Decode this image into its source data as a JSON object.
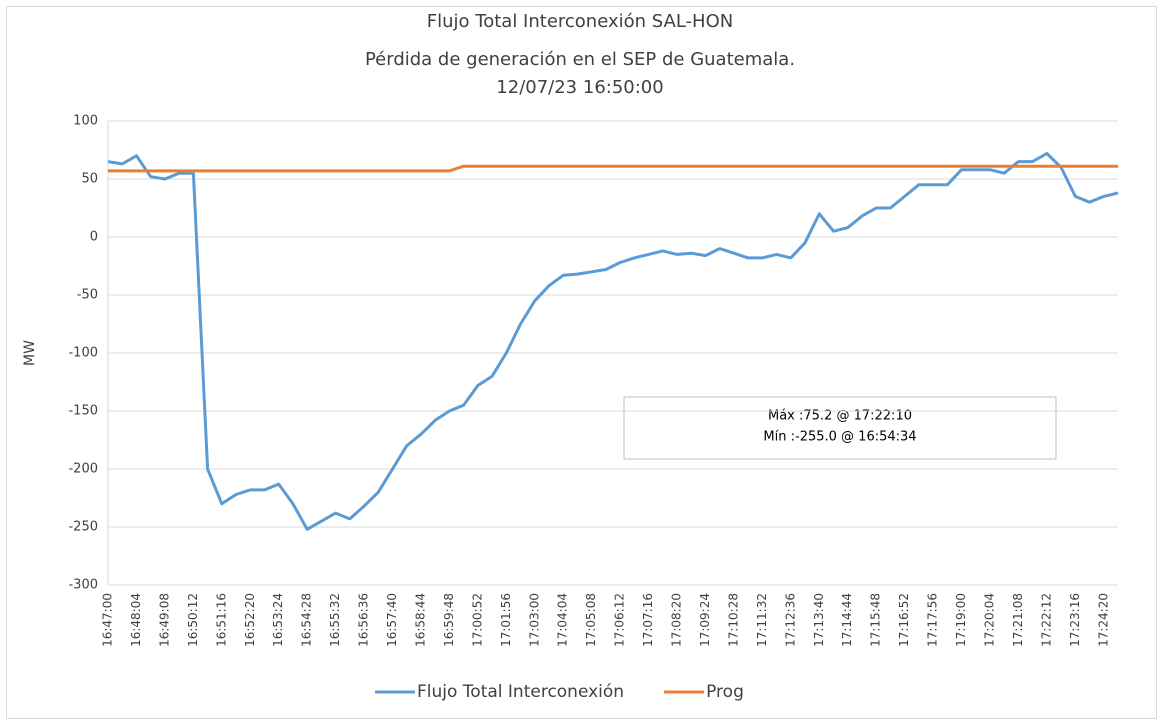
{
  "chart_data": {
    "type": "line",
    "title": [
      "Flujo Total Interconexión SAL-HON",
      "Pérdida de generación en el SEP de Guatemala.",
      "12/07/23 16:50:00"
    ],
    "ylabel": "MW",
    "categories": [
      "16:47:00",
      null,
      "16:48:04",
      null,
      "16:49:08",
      null,
      "16:50:12",
      null,
      "16:51:16",
      null,
      "16:52:20",
      null,
      "16:53:24",
      null,
      "16:54:28",
      null,
      "16:55:32",
      null,
      "16:56:36",
      null,
      "16:57:40",
      null,
      "16:58:44",
      null,
      "16:59:48",
      null,
      "17:00:52",
      null,
      "17:01:56",
      null,
      "17:03:00",
      null,
      "17:04:04",
      null,
      "17:05:08",
      null,
      "17:06:12",
      null,
      "17:07:16",
      null,
      "17:08:20",
      null,
      "17:09:24",
      null,
      "17:10:28",
      null,
      "17:11:32",
      null,
      "17:12:36",
      null,
      "17:13:40",
      null,
      "17:14:44",
      null,
      "17:15:48",
      null,
      "17:16:52",
      null,
      "17:17:56",
      null,
      "17:19:00",
      null,
      "17:20:04",
      null,
      "17:21:08",
      null,
      "17:22:12",
      null,
      "17:23:16",
      null,
      "17:24:20",
      null
    ],
    "series": [
      {
        "name": "Flujo Total Interconexión",
        "color": "#5b9bd5",
        "values": [
          65,
          63,
          70,
          52,
          50,
          55,
          55,
          -200,
          -230,
          -222,
          -218,
          -218,
          -213,
          -230,
          -252,
          -245,
          -238,
          -243,
          -232,
          -220,
          -200,
          -180,
          -170,
          -158,
          -150,
          -145,
          -128,
          -120,
          -100,
          -75,
          -55,
          -42,
          -33,
          -32,
          -30,
          -28,
          -22,
          -18,
          -15,
          -12,
          -15,
          -14,
          -16,
          -10,
          -14,
          -18,
          -18,
          -15,
          -18,
          -5,
          20,
          5,
          8,
          18,
          25,
          25,
          35,
          45,
          45,
          45,
          58,
          58,
          58,
          55,
          65,
          65,
          72,
          60,
          35,
          30,
          35,
          38
        ]
      },
      {
        "name": "Prog",
        "color": "#ed7d31",
        "values": [
          57,
          57,
          57,
          57,
          57,
          57,
          57,
          57,
          57,
          57,
          57,
          57,
          57,
          57,
          57,
          57,
          57,
          57,
          57,
          57,
          57,
          57,
          57,
          57,
          57,
          61,
          61,
          61,
          61,
          61,
          61,
          61,
          61,
          61,
          61,
          61,
          61,
          61,
          61,
          61,
          61,
          61,
          61,
          61,
          61,
          61,
          61,
          61,
          61,
          61,
          61,
          61,
          61,
          61,
          61,
          61,
          61,
          61,
          61,
          61,
          61,
          61,
          61,
          61,
          61,
          61,
          61,
          61,
          61,
          61,
          61,
          61
        ]
      }
    ],
    "annotations": [
      "Máx :75.2 @ 17:22:10",
      "Mín :-255.0 @ 16:54:34"
    ],
    "ylim": [
      -300,
      100
    ],
    "yticks": [
      -300,
      -250,
      -200,
      -150,
      -100,
      -50,
      0,
      50,
      100
    ],
    "grid": true,
    "legend": "bottom"
  }
}
